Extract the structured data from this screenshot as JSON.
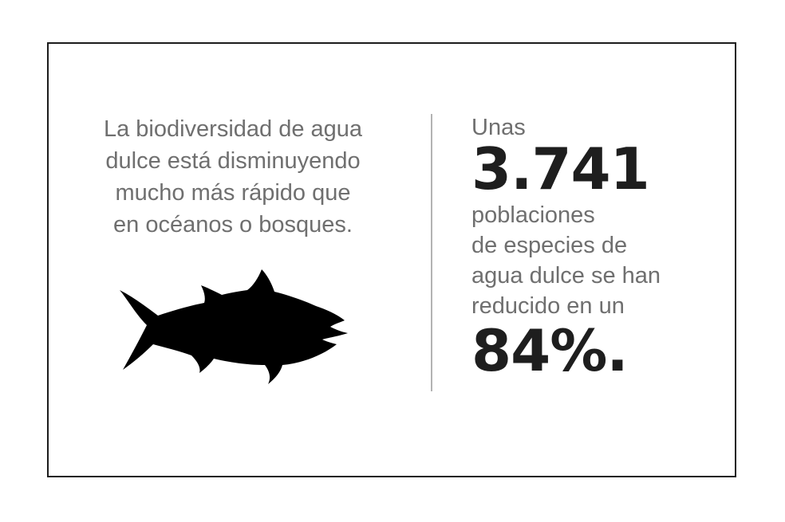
{
  "left": {
    "lines": [
      "La biodiversidad de agua",
      "dulce está disminuyendo",
      "mucho más rápido que",
      "en océanos o bosques."
    ]
  },
  "right": {
    "intro": "Unas",
    "number": "3.741",
    "desc_lines": [
      "poblaciones",
      "de especies de",
      "agua dulce se han",
      "reducido en un"
    ],
    "percent": "84%."
  },
  "icons": {
    "fish": "fish-silhouette-icon"
  },
  "colors": {
    "body_text": "#6f6f6f",
    "highlight_text": "#1e1e1e",
    "border": "#1c1c1c",
    "divider": "#b3b3b3",
    "fish": "#000000"
  }
}
